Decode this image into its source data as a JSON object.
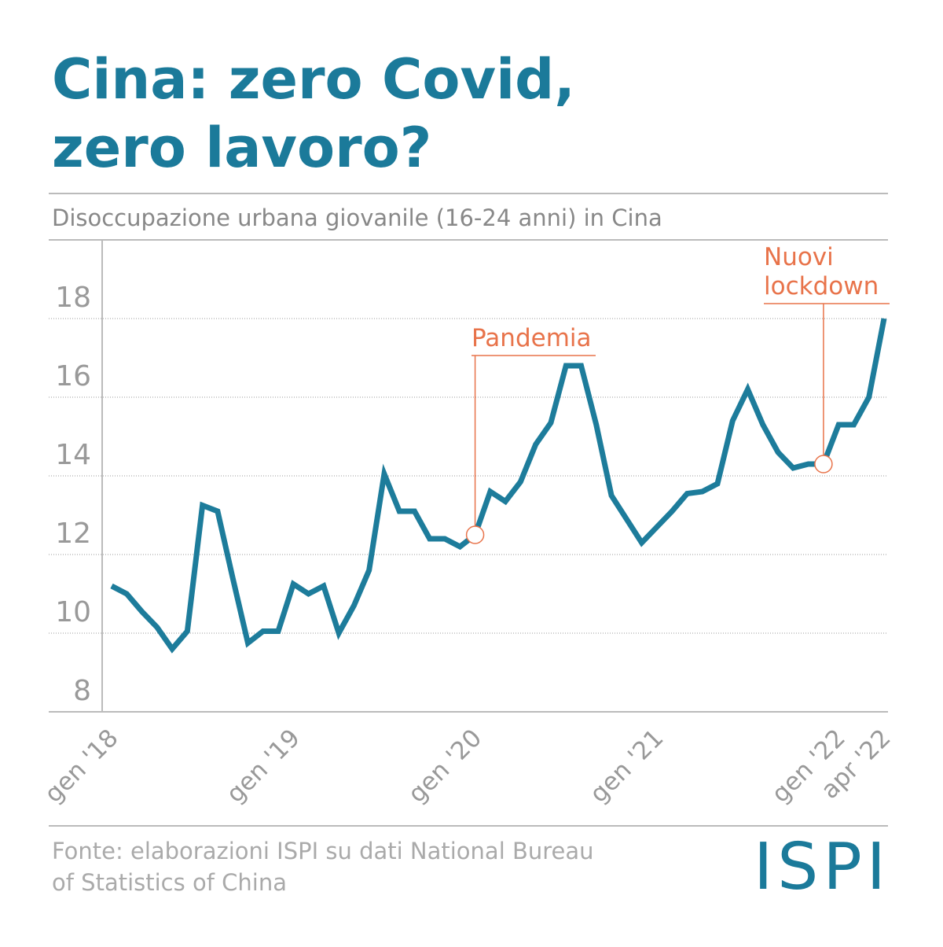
{
  "title": [
    "Cina: zero Covid,",
    "zero lavoro?"
  ],
  "chart_data": {
    "type": "line",
    "subtitle": "Disoccupazione urbana giovanile (16-24 anni) in Cina",
    "categories": [
      "gen '18",
      null,
      null,
      null,
      null,
      null,
      null,
      null,
      null,
      null,
      null,
      null,
      "gen '19",
      null,
      null,
      null,
      null,
      null,
      null,
      null,
      null,
      null,
      null,
      null,
      "gen '20",
      null,
      null,
      null,
      null,
      null,
      null,
      null,
      null,
      null,
      null,
      null,
      "gen '21",
      null,
      null,
      null,
      null,
      null,
      null,
      null,
      null,
      null,
      null,
      null,
      "gen '22",
      null,
      null,
      "apr '22"
    ],
    "series": [
      {
        "color": "#1d7c9b",
        "values": [
          11.2,
          11.0,
          10.55,
          10.15,
          9.6,
          10.05,
          13.25,
          13.1,
          11.4,
          9.75,
          10.05,
          10.05,
          11.25,
          11.0,
          11.2,
          10.0,
          10.7,
          11.6,
          14.05,
          13.1,
          13.1,
          12.4,
          12.4,
          12.2,
          12.5,
          13.6,
          13.35,
          13.85,
          14.8,
          15.35,
          16.8,
          16.8,
          15.3,
          13.5,
          12.9,
          12.3,
          12.7,
          13.1,
          13.55,
          13.6,
          13.8,
          15.4,
          16.2,
          15.3,
          14.6,
          14.2,
          14.3,
          14.3,
          15.3,
          15.3,
          16.0,
          18.0
        ]
      }
    ],
    "ylim": [
      8,
      20
    ],
    "yticks": [
      8,
      10,
      12,
      14,
      16,
      18
    ],
    "grid": true,
    "annotations": [
      {
        "text": [
          "Pandemia"
        ],
        "color": "#e8734a"
      },
      {
        "text": [
          "Nuovi",
          "lockdown"
        ],
        "color": "#e8734a"
      }
    ]
  },
  "source": [
    "Fonte: elaborazioni ISPI su dati National Bureau",
    "of Statistics of China"
  ],
  "logo": "ISPI"
}
